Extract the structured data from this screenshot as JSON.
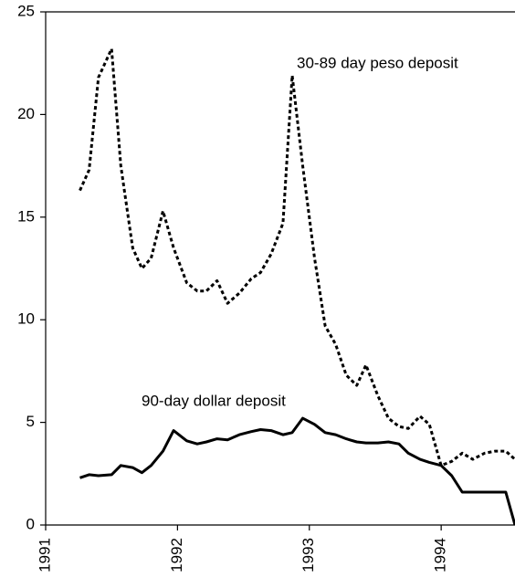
{
  "chart_data": {
    "type": "line",
    "x": [
      1991.26,
      1991.33,
      1991.4,
      1991.5,
      1991.57,
      1991.66,
      1991.73,
      1991.8,
      1991.89,
      1991.97,
      1992.07,
      1992.15,
      1992.22,
      1992.3,
      1992.38,
      1992.47,
      1992.56,
      1992.63,
      1992.71,
      1992.8,
      1992.87,
      1992.95,
      1993.04,
      1993.12,
      1993.2,
      1993.28,
      1993.36,
      1993.43,
      1993.52,
      1993.6,
      1993.68,
      1993.75,
      1993.84,
      1993.91,
      1994.0,
      1994.08,
      1994.16,
      1994.24,
      1994.33,
      1994.41,
      1994.49,
      1994.56
    ],
    "series": [
      {
        "name": "30-89 day peso deposit",
        "color": "#000000",
        "dashed": true,
        "values": [
          16.3,
          17.3,
          21.8,
          23.2,
          17.5,
          13.5,
          12.5,
          13.0,
          15.3,
          13.5,
          11.8,
          11.4,
          11.4,
          11.9,
          10.8,
          11.3,
          12.0,
          12.3,
          13.2,
          14.7,
          21.9,
          17.5,
          13.0,
          9.7,
          8.8,
          7.3,
          6.8,
          7.8,
          6.3,
          5.2,
          4.8,
          4.7,
          5.3,
          4.9,
          2.9,
          3.1,
          3.5,
          3.2,
          3.5,
          3.6,
          3.6,
          3.2
        ]
      },
      {
        "name": "90-day dollar deposit",
        "color": "#000000",
        "dashed": false,
        "values": [
          2.3,
          2.45,
          2.4,
          2.45,
          2.9,
          2.8,
          2.55,
          2.9,
          3.6,
          4.6,
          4.1,
          3.95,
          4.05,
          4.2,
          4.15,
          4.4,
          4.55,
          4.65,
          4.6,
          4.4,
          4.5,
          5.2,
          4.9,
          4.5,
          4.4,
          4.2,
          4.05,
          4.0,
          4.0,
          4.05,
          3.95,
          3.5,
          3.2,
          3.05,
          2.9,
          2.4,
          1.6,
          1.6,
          1.6,
          1.6,
          1.6,
          0
        ]
      }
    ],
    "xlim": [
      1991,
      1994.56
    ],
    "xticks": [
      1991,
      1992,
      1993,
      1994
    ],
    "ylim": [
      0,
      25
    ],
    "yticks": [
      0,
      5,
      10,
      15,
      20,
      25
    ]
  }
}
